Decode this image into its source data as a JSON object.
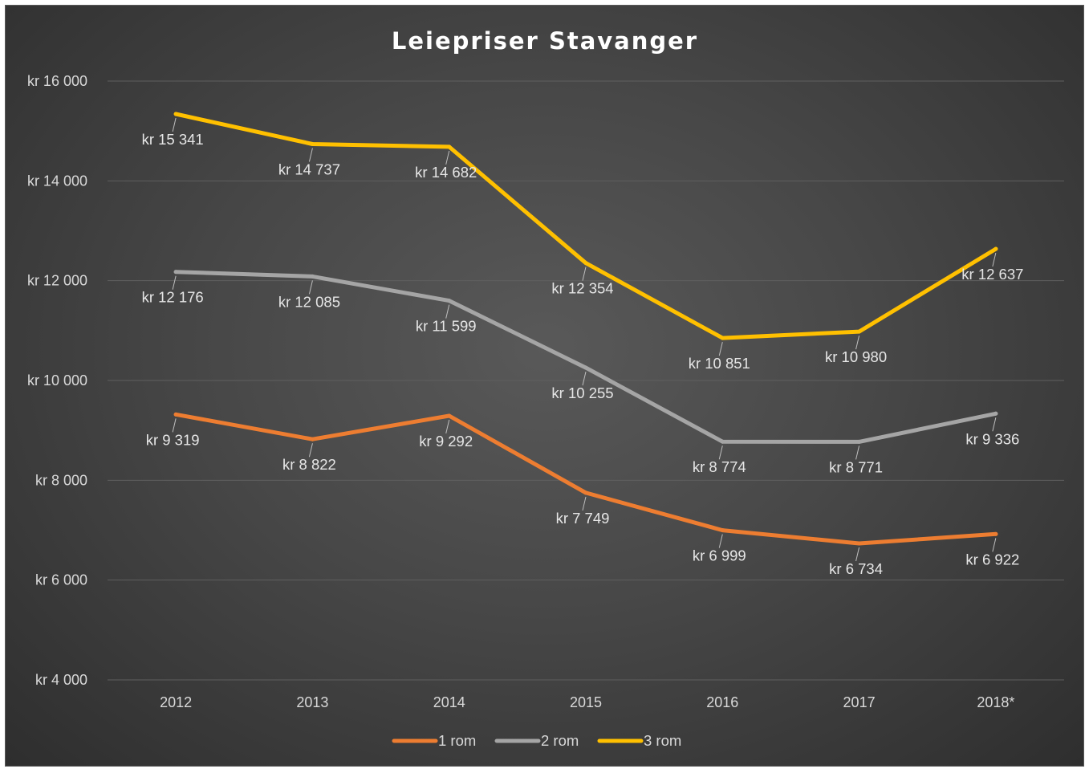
{
  "chart_data": {
    "type": "line",
    "title": "Leiepriser Stavanger",
    "xlabel": "",
    "ylabel": "",
    "categories": [
      "2012",
      "2013",
      "2014",
      "2015",
      "2016",
      "2017",
      "2018*"
    ],
    "ylim": [
      4000,
      16000
    ],
    "yticks": [
      4000,
      6000,
      8000,
      10000,
      12000,
      14000,
      16000
    ],
    "ytick_labels": [
      "kr 4 000",
      "kr 6 000",
      "kr 8 000",
      "kr 10 000",
      "kr 12 000",
      "kr 14 000",
      "kr 16 000"
    ],
    "grid": true,
    "legend_position": "bottom",
    "series": [
      {
        "name": "1 rom",
        "color": "#ed7d31",
        "values": [
          9319,
          8822,
          9292,
          7749,
          6999,
          6734,
          6922
        ],
        "labels": [
          "kr 9 319",
          "kr 8 822",
          "kr 9 292",
          "kr 7 749",
          "kr 6 999",
          "kr 6 734",
          "kr 6 922"
        ]
      },
      {
        "name": "2 rom",
        "color": "#a5a5a5",
        "values": [
          12176,
          12085,
          11599,
          10255,
          8774,
          8771,
          9336
        ],
        "labels": [
          "kr 12 176",
          "kr 12 085",
          "kr 11 599",
          "kr 10 255",
          "kr 8 774",
          "kr 8 771",
          "kr 9 336"
        ]
      },
      {
        "name": "3 rom",
        "color": "#ffc000",
        "values": [
          15341,
          14737,
          14682,
          12354,
          10851,
          10980,
          12637
        ],
        "labels": [
          "kr 15 341",
          "kr 14 737",
          "kr 14 682",
          "kr 12 354",
          "kr 10 851",
          "kr 10 980",
          "kr 12 637"
        ]
      }
    ]
  },
  "colors": {
    "gridline": "#5f5f5f",
    "leader_line": "#bfbfbf"
  }
}
